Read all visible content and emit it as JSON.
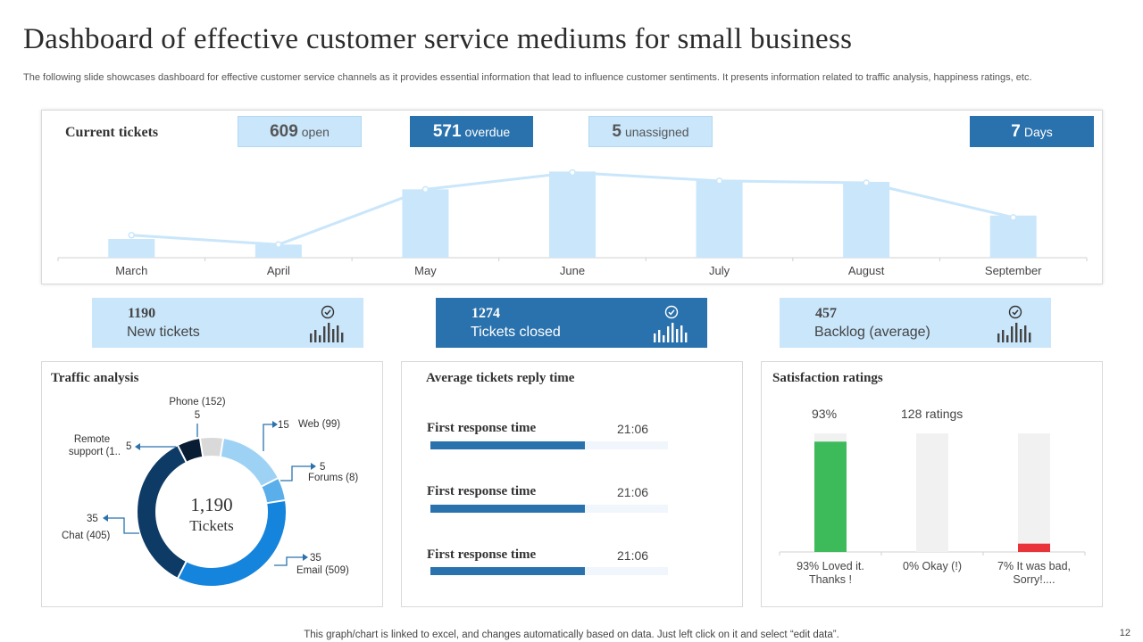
{
  "page": {
    "title": "Dashboard of effective customer service mediums for small business",
    "subtitle": "The following slide showcases dashboard for effective customer service channels as it provides essential information that lead to influence customer sentiments. It presents information related to traffic analysis, happiness ratings, etc.",
    "footnote": "This graph/chart is linked to excel,  and changes automatically based on data. Just left click on it and select “edit data”.",
    "page_number": "12"
  },
  "colors": {
    "dark_blue": "#2a72ad",
    "light_blue": "#c9e6fb",
    "navy": "#0d3b66",
    "green": "#3dbb5a",
    "red": "#e8333a",
    "grey": "#f1f1f1"
  },
  "current_tickets": {
    "title": "Current tickets",
    "badges": [
      {
        "num": "609",
        "label": "open"
      },
      {
        "num": "571",
        "label": "overdue"
      },
      {
        "num": "5",
        "label": "unassigned"
      },
      {
        "num": "7",
        "label": "Days"
      }
    ]
  },
  "kpis": [
    {
      "value": "1190",
      "label": "New tickets",
      "icon": "check-circle-icon"
    },
    {
      "value": "1274",
      "label": "Tickets closed",
      "icon": "check-circle-icon"
    },
    {
      "value": "457",
      "label": "Backlog (average)",
      "icon": "check-circle-icon"
    }
  ],
  "traffic": {
    "title": "Traffic analysis",
    "center_value": "1,190",
    "center_label": "Tickets",
    "labels": [
      {
        "name": "Phone (152)",
        "value": "5"
      },
      {
        "name": "Web (99)",
        "value": "15"
      },
      {
        "name": "Forums (8)",
        "value": "5"
      },
      {
        "name": "Email (509)",
        "value": "35"
      },
      {
        "name": "Chat (405)",
        "value": "35"
      },
      {
        "name_line1": "Remote",
        "name_line2": "support (1..",
        "value": "5"
      }
    ]
  },
  "reply_time": {
    "title": "Average tickets reply time",
    "rows": [
      {
        "label": "First response time",
        "value": "21:06",
        "fraction": 0.65
      },
      {
        "label": "First response time",
        "value": "21:06",
        "fraction": 0.65
      },
      {
        "label": "First response time",
        "value": "21:06",
        "fraction": 0.65
      }
    ]
  },
  "satisfaction": {
    "title": "Satisfaction ratings",
    "headline_pct": "93%",
    "headline_count": "128 ratings",
    "categories": [
      {
        "line1": "93% Loved it.",
        "line2": "Thanks !"
      },
      {
        "line1": "0% Okay (!)",
        "line2": ""
      },
      {
        "line1": "7% It was bad,",
        "line2": "Sorry!...."
      }
    ]
  },
  "chart_data": [
    {
      "type": "bar",
      "title": "Current tickets",
      "categories": [
        "March",
        "April",
        "May",
        "June",
        "July",
        "August",
        "September"
      ],
      "series": [
        {
          "values": [
            20,
            14,
            73,
            92,
            83,
            81,
            45
          ]
        },
        {
          "values": [
            24,
            14,
            73,
            91,
            82,
            80,
            43
          ]
        }
      ],
      "ylim": [
        0,
        100
      ],
      "colors": [
        "#c9e6fb",
        "#c9e6fb"
      ]
    },
    {
      "type": "pie",
      "title": "Traffic analysis",
      "categories": [
        "Phone (152)",
        "Web (99)",
        "Forums (8)",
        "Email (509)",
        "Chat (405)",
        "Remote support (1.."
      ],
      "values": [
        5,
        15,
        5,
        35,
        35,
        5
      ],
      "colors": [
        "#d9d9d9",
        "#9ed2f5",
        "#5aaeea",
        "#1584dc",
        "#0d3b66",
        "#081d33"
      ]
    },
    {
      "type": "bar",
      "title": "Satisfaction ratings",
      "categories": [
        "93% Loved it. Thanks !",
        "0% Okay (!)",
        "7% It was bad, Sorry!...."
      ],
      "values": [
        93,
        0,
        7
      ],
      "ylim": [
        0,
        100
      ],
      "colors": [
        "#3dbb5a",
        "#f1f1f1",
        "#e8333a"
      ]
    }
  ]
}
